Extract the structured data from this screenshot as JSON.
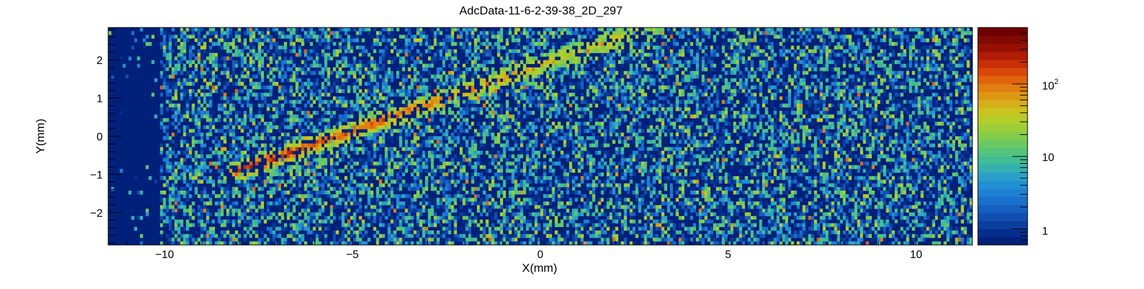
{
  "chart_data": {
    "type": "heatmap",
    "title": "AdcData-11-6-2-39-38_2D_297",
    "xlabel": "X(mm)",
    "ylabel": "Y(mm)",
    "xlim": [
      -11.5,
      11.5
    ],
    "ylim": [
      -2.85,
      2.85
    ],
    "x_ticks": [
      -10,
      -5,
      0,
      5,
      10
    ],
    "x_tick_labels": [
      "−10",
      "−5",
      "0",
      "5",
      "10"
    ],
    "y_ticks": [
      -2,
      -1,
      0,
      1,
      2
    ],
    "y_tick_labels": [
      "−2",
      "−1",
      "0",
      "1",
      "2"
    ],
    "z_scale": "log",
    "zlim": [
      0.6,
      600
    ],
    "z_ticks": [
      1,
      10,
      100
    ],
    "z_tick_labels": [
      "1",
      "10",
      "10^2"
    ],
    "bins": {
      "nx": 300,
      "ny": 60
    },
    "features": {
      "low_background_region_x": [
        -11.5,
        -10.1
      ],
      "track": {
        "from": [
          -8,
          -0.9
        ],
        "to": [
          3,
          2.9
        ],
        "peak_near_x": -6.5
      }
    },
    "palette": [
      "#00207a",
      "#052f8c",
      "#0a3f9e",
      "#114fb0",
      "#1560c0",
      "#1a70cc",
      "#1f80d4",
      "#2190d4",
      "#2aa0c8",
      "#34b0b0",
      "#40bc96",
      "#52c47c",
      "#68c964",
      "#82cc4c",
      "#9cce3a",
      "#b4cc2c",
      "#c8c420",
      "#d4b01a",
      "#dc9814",
      "#e07e10",
      "#e0640c",
      "#d8480a",
      "#c83008",
      "#b01c06",
      "#981004",
      "#800a02",
      "#700000"
    ],
    "grid": false,
    "legend": "colorbar-right"
  }
}
